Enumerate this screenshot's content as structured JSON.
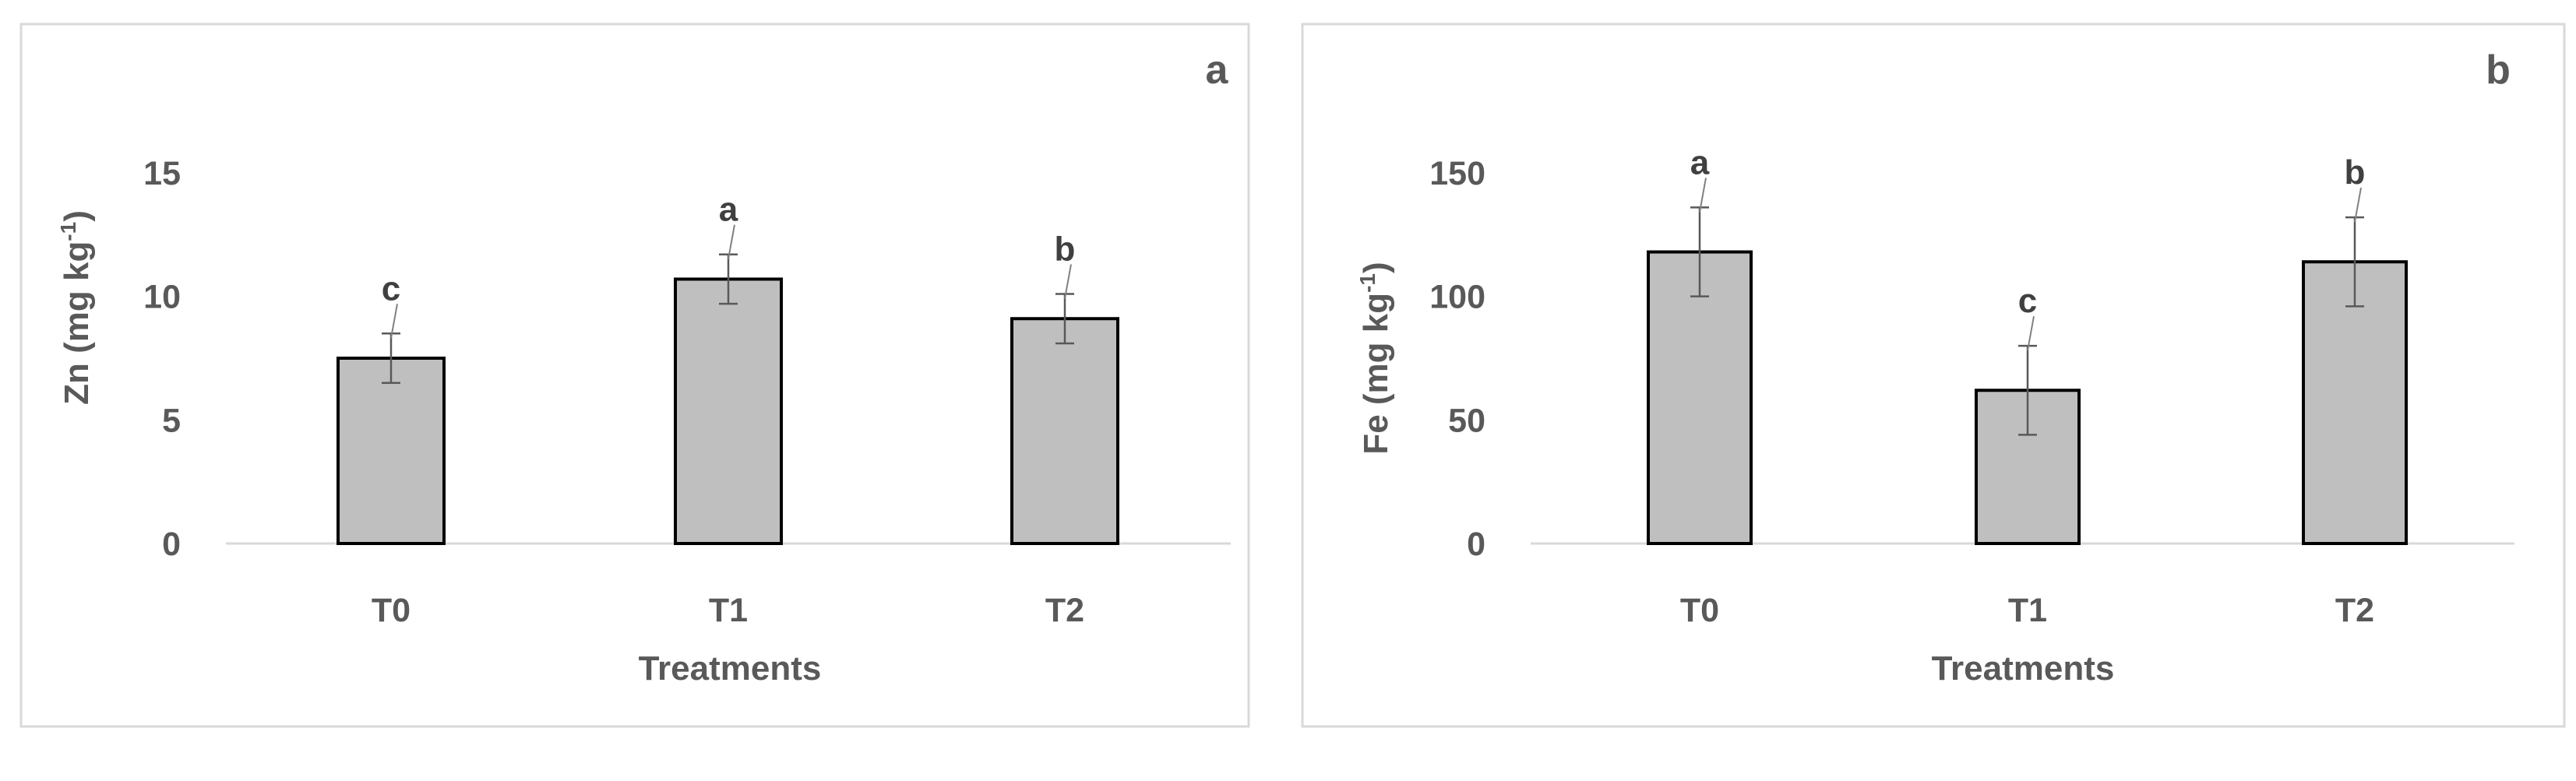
{
  "chart_data": [
    {
      "type": "bar",
      "panel_label": "a",
      "categories": [
        "T0",
        "T1",
        "T2"
      ],
      "values": [
        7.5,
        10.7,
        9.1
      ],
      "errors": [
        1.0,
        1.0,
        1.0
      ],
      "significance_letters": [
        "c",
        "a",
        "b"
      ],
      "xlabel": "Treatments",
      "ylabel_main": "Zn (mg kg",
      "ylabel_sup": "-1",
      "ylabel_end": ")",
      "ylim": [
        0,
        15
      ],
      "yticks": [
        0,
        5,
        10,
        15
      ],
      "grid": false,
      "legend": "none",
      "bar_color": "#bfbfbf",
      "edge_color": "#000000"
    },
    {
      "type": "bar",
      "panel_label": "b",
      "categories": [
        "T0",
        "T1",
        "T2"
      ],
      "values": [
        118,
        62,
        114
      ],
      "errors": [
        18,
        18,
        18
      ],
      "significance_letters": [
        "a",
        "c",
        "b"
      ],
      "xlabel": "Treatments",
      "ylabel_main": "Fe (mg kg",
      "ylabel_sup": "-1",
      "ylabel_end": ")",
      "ylim": [
        0,
        150
      ],
      "yticks": [
        0,
        50,
        100,
        150
      ],
      "grid": false,
      "legend": "none",
      "bar_color": "#bfbfbf",
      "edge_color": "#000000"
    }
  ]
}
